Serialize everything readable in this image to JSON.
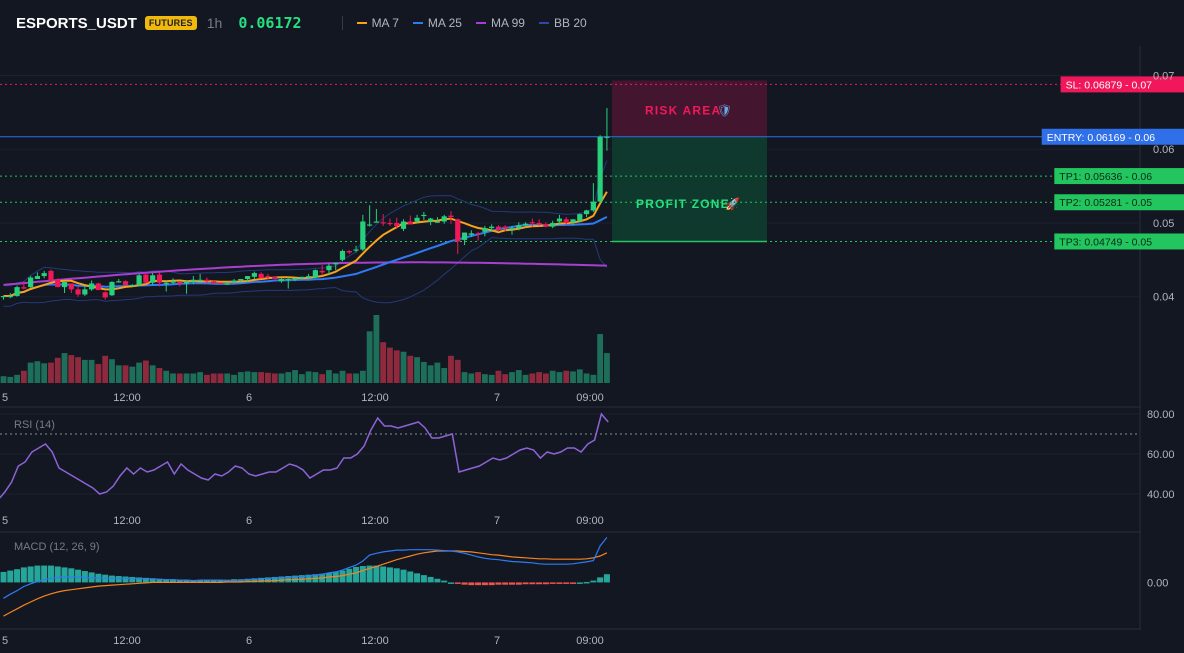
{
  "header": {
    "symbol": "ESPORTS_USDT",
    "badge": "FUTURES",
    "timeframe": "1h",
    "price": "0.06172"
  },
  "legend": [
    {
      "label": "MA 7",
      "color": "#f7a21b"
    },
    {
      "label": "MA 25",
      "color": "#2f7bf5"
    },
    {
      "label": "MA 99",
      "color": "#a93fd1"
    },
    {
      "label": "BB 20",
      "color": "#2b4aa0"
    }
  ],
  "levels": [
    {
      "label": "SL: 0.06879 - 0.07",
      "value": 0.06879,
      "kind": "sl",
      "color": "#f0185b"
    },
    {
      "label": "ENTRY: 0.06169 - 0.06",
      "value": 0.06169,
      "kind": "entry",
      "color": "#2f6fe8"
    },
    {
      "label": "TP1: 0.05636 - 0.06",
      "value": 0.05636,
      "kind": "tp",
      "color": "#22c55e"
    },
    {
      "label": "TP2: 0.05281 - 0.05",
      "value": 0.05281,
      "kind": "tp",
      "color": "#22c55e"
    },
    {
      "label": "TP3: 0.04749 - 0.05",
      "value": 0.04749,
      "kind": "tp",
      "color": "#22c55e"
    }
  ],
  "zones": {
    "risk_label": "RISK AREA",
    "profit_label": "PROFIT ZONE"
  },
  "colors": {
    "up": "#26d07c",
    "down": "#f0185b",
    "vol_up": "#1d6f5a",
    "vol_down": "#8f2a3e",
    "rsi": "#8e63d8",
    "macd": "#2f7bf5",
    "signal": "#f5841f",
    "hist_up": "#26a69a",
    "hist_down": "#ef5350"
  },
  "chart_data": [
    {
      "type": "candlestick",
      "title": "ESPORTS_USDT",
      "x_ticks": [
        "5",
        "12:00",
        "6",
        "12:00",
        "7",
        "09:00"
      ],
      "y_ticks": [
        "0.07",
        "0.06",
        "0.05",
        "0.04"
      ],
      "ylim": [
        0.0283,
        0.0702
      ],
      "candles": [
        [
          0.04,
          0.04,
          0.0396,
          0.0401
        ],
        [
          0.04,
          0.0405,
          0.0398,
          0.0401
        ],
        [
          0.0401,
          0.0415,
          0.04,
          0.0413
        ],
        [
          0.0413,
          0.0421,
          0.041,
          0.0411
        ],
        [
          0.0413,
          0.0428,
          0.0412,
          0.0426
        ],
        [
          0.0424,
          0.0433,
          0.0425,
          0.0428
        ],
        [
          0.0428,
          0.0435,
          0.0425,
          0.0432
        ],
        [
          0.0435,
          0.0437,
          0.042,
          0.0422
        ],
        [
          0.0423,
          0.0425,
          0.0413,
          0.0413
        ],
        [
          0.0413,
          0.042,
          0.0405,
          0.042
        ],
        [
          0.0418,
          0.0418,
          0.0405,
          0.041
        ],
        [
          0.041,
          0.0414,
          0.04,
          0.0403
        ],
        [
          0.0403,
          0.0415,
          0.0401,
          0.041
        ],
        [
          0.041,
          0.0422,
          0.0408,
          0.0418
        ],
        [
          0.0418,
          0.0419,
          0.0409,
          0.0409
        ],
        [
          0.0406,
          0.0407,
          0.0396,
          0.0399
        ],
        [
          0.0402,
          0.0421,
          0.0401,
          0.042
        ],
        [
          0.0421,
          0.0424,
          0.0419,
          0.0421
        ],
        [
          0.0421,
          0.0422,
          0.0415,
          0.0416
        ],
        [
          0.0416,
          0.0417,
          0.0414,
          0.0416
        ],
        [
          0.0416,
          0.0431,
          0.0414,
          0.0429
        ],
        [
          0.043,
          0.0432,
          0.0418,
          0.0419
        ],
        [
          0.0419,
          0.0432,
          0.0416,
          0.0429
        ],
        [
          0.043,
          0.0433,
          0.0414,
          0.0419
        ],
        [
          0.0419,
          0.0421,
          0.0407,
          0.0419
        ],
        [
          0.0419,
          0.0425,
          0.0417,
          0.0421
        ],
        [
          0.042,
          0.0421,
          0.0414,
          0.0418
        ],
        [
          0.0418,
          0.0421,
          0.0404,
          0.0421
        ],
        [
          0.0421,
          0.0428,
          0.0417,
          0.0423
        ],
        [
          0.0423,
          0.0431,
          0.042,
          0.0423
        ],
        [
          0.0423,
          0.0426,
          0.0418,
          0.0421
        ],
        [
          0.0421,
          0.0422,
          0.0417,
          0.0418
        ],
        [
          0.0419,
          0.0419,
          0.0417,
          0.0418
        ],
        [
          0.0418,
          0.042,
          0.0416,
          0.0418
        ],
        [
          0.042,
          0.0424,
          0.0418,
          0.0422
        ],
        [
          0.0422,
          0.0424,
          0.042,
          0.0424
        ],
        [
          0.0424,
          0.0428,
          0.042,
          0.0428
        ],
        [
          0.0427,
          0.0434,
          0.0424,
          0.0432
        ],
        [
          0.0431,
          0.0433,
          0.0425,
          0.0425
        ],
        [
          0.0428,
          0.0431,
          0.0424,
          0.0427
        ],
        [
          0.0427,
          0.0427,
          0.0424,
          0.0424
        ],
        [
          0.0421,
          0.0426,
          0.0419,
          0.0424
        ],
        [
          0.0423,
          0.0427,
          0.0411,
          0.0424
        ],
        [
          0.0423,
          0.0426,
          0.0421,
          0.0425
        ],
        [
          0.0425,
          0.0427,
          0.0424,
          0.0427
        ],
        [
          0.0426,
          0.0431,
          0.0424,
          0.0428
        ],
        [
          0.0426,
          0.0437,
          0.0425,
          0.0436
        ],
        [
          0.0435,
          0.0443,
          0.0429,
          0.0433
        ],
        [
          0.0436,
          0.0445,
          0.043,
          0.0442
        ],
        [
          0.0444,
          0.0446,
          0.0436,
          0.0446
        ],
        [
          0.045,
          0.0464,
          0.0448,
          0.0462
        ],
        [
          0.0462,
          0.0463,
          0.0458,
          0.046
        ],
        [
          0.0463,
          0.0469,
          0.046,
          0.0464
        ],
        [
          0.0464,
          0.0511,
          0.0462,
          0.0502
        ],
        [
          0.0498,
          0.0524,
          0.0495,
          0.0498
        ],
        [
          0.0502,
          0.0519,
          0.0501,
          0.0502
        ],
        [
          0.0501,
          0.0512,
          0.0496,
          0.05
        ],
        [
          0.05,
          0.0506,
          0.0496,
          0.0499
        ],
        [
          0.05,
          0.0507,
          0.0492,
          0.0496
        ],
        [
          0.0492,
          0.0505,
          0.0489,
          0.0502
        ],
        [
          0.0502,
          0.051,
          0.0498,
          0.0498
        ],
        [
          0.0502,
          0.0511,
          0.05,
          0.0507
        ],
        [
          0.0511,
          0.0515,
          0.0504,
          0.0511
        ],
        [
          0.0502,
          0.0507,
          0.0497,
          0.0506
        ],
        [
          0.0502,
          0.0508,
          0.05,
          0.0502
        ],
        [
          0.0502,
          0.0511,
          0.0499,
          0.0509
        ],
        [
          0.051,
          0.0516,
          0.0499,
          0.0508
        ],
        [
          0.0505,
          0.0506,
          0.0458,
          0.0475
        ],
        [
          0.0477,
          0.0487,
          0.047,
          0.0487
        ],
        [
          0.0484,
          0.049,
          0.0481,
          0.0486
        ],
        [
          0.0486,
          0.0488,
          0.0476,
          0.0485
        ],
        [
          0.0488,
          0.0496,
          0.0482,
          0.0493
        ],
        [
          0.0493,
          0.0498,
          0.0488,
          0.0495
        ],
        [
          0.0495,
          0.0497,
          0.0488,
          0.0491
        ],
        [
          0.0495,
          0.0497,
          0.0489,
          0.0493
        ],
        [
          0.0493,
          0.0496,
          0.0484,
          0.0493
        ],
        [
          0.0493,
          0.0501,
          0.049,
          0.0497
        ],
        [
          0.0497,
          0.0501,
          0.0494,
          0.0499
        ],
        [
          0.0501,
          0.0506,
          0.0495,
          0.05
        ],
        [
          0.05,
          0.0505,
          0.0496,
          0.0498
        ],
        [
          0.0498,
          0.0501,
          0.0494,
          0.0495
        ],
        [
          0.0495,
          0.0503,
          0.0493,
          0.05
        ],
        [
          0.0502,
          0.0511,
          0.0497,
          0.0506
        ],
        [
          0.0505,
          0.0508,
          0.0497,
          0.05
        ],
        [
          0.0501,
          0.0505,
          0.0497,
          0.0505
        ],
        [
          0.0503,
          0.0513,
          0.0501,
          0.0512
        ],
        [
          0.0512,
          0.0518,
          0.0508,
          0.0517
        ],
        [
          0.0517,
          0.0554,
          0.0515,
          0.0529
        ],
        [
          0.0529,
          0.0619,
          0.0527,
          0.0617
        ],
        [
          0.0616,
          0.0656,
          0.0598,
          0.0617
        ]
      ],
      "volume_scale_max": 100,
      "volumes": [
        10,
        9,
        12,
        18,
        30,
        32,
        29,
        30,
        37,
        44,
        41,
        38,
        34,
        34,
        28,
        40,
        35,
        26,
        26,
        24,
        30,
        33,
        26,
        22,
        18,
        14,
        14,
        14,
        14,
        16,
        12,
        14,
        14,
        14,
        12,
        16,
        17,
        16,
        16,
        15,
        14,
        14,
        16,
        19,
        13,
        17,
        16,
        13,
        19,
        14,
        18,
        14,
        14,
        18,
        76,
        100,
        60,
        52,
        48,
        46,
        40,
        38,
        31,
        26,
        30,
        22,
        40,
        34,
        16,
        14,
        16,
        13,
        12,
        18,
        13,
        16,
        19,
        12,
        14,
        16,
        14,
        18,
        16,
        18,
        17,
        20,
        14,
        12,
        72,
        44
      ]
    },
    {
      "type": "line",
      "title": "RSI (14)",
      "y_ticks": [
        "80.00",
        "60.00",
        "40.00"
      ],
      "ylim": [
        35,
        83
      ],
      "overbought": 70,
      "values": [
        37,
        41,
        46,
        54,
        56,
        61,
        63,
        65,
        61,
        53,
        51,
        49,
        47,
        45,
        43,
        40,
        41,
        44,
        49,
        53,
        50,
        53,
        51,
        52,
        54,
        56,
        50,
        55,
        52,
        50,
        48,
        47,
        50,
        49,
        51,
        54,
        53,
        50,
        49,
        50,
        51,
        51,
        53,
        55,
        54,
        52,
        48,
        50,
        52,
        52,
        53,
        58,
        58,
        60,
        64,
        72,
        78,
        74,
        74,
        73,
        74,
        75,
        76,
        73,
        68,
        68,
        69,
        70,
        51,
        52,
        53,
        54,
        56,
        58,
        57,
        58,
        60,
        62,
        63,
        62,
        58,
        61,
        60,
        61,
        63,
        63,
        61,
        65,
        67,
        80,
        76
      ]
    },
    {
      "type": "line",
      "title": "MACD (12, 26, 9)",
      "y_ticks": [
        "0.00"
      ],
      "ylim": [
        -0.00098,
        0.00113
      ],
      "series": [
        {
          "name": "MACD",
          "values": [
            -0.00035,
            -0.00026,
            -0.00018,
            -9e-05,
            -3e-05,
            2e-05,
            6e-05,
            9e-05,
            0.00011,
            0.00012,
            0.00012,
            0.00012,
            0.00011,
            0.0001,
            0.0001,
            9e-05,
            9e-05,
            9e-05,
            9e-05,
            8e-05,
            9e-05,
            8e-05,
            8e-05,
            7e-05,
            6e-05,
            6e-05,
            5e-05,
            5e-05,
            4e-05,
            5e-05,
            5e-05,
            5e-05,
            5e-05,
            4e-05,
            4e-05,
            5e-05,
            6e-05,
            7e-05,
            8e-05,
            9e-05,
            0.0001,
            0.0001,
            0.00011,
            0.00012,
            0.00013,
            0.00014,
            0.00016,
            0.00018,
            0.00021,
            0.00023,
            0.00027,
            0.00033,
            0.00038,
            0.00047,
            0.0006,
            0.00064,
            0.00067,
            0.00069,
            0.00071,
            0.00071,
            0.00072,
            0.00072,
            0.00072,
            0.00072,
            0.00071,
            0.0007,
            0.00069,
            0.00067,
            0.00064,
            0.0006,
            0.00056,
            0.00053,
            0.00051,
            0.0005,
            0.00048,
            0.00046,
            0.00045,
            0.00044,
            0.00043,
            0.00041,
            0.0004,
            0.0004,
            0.0004,
            0.0004,
            0.00041,
            0.00043,
            0.00045,
            0.00048,
            0.0008,
            0.00099
          ]
        },
        {
          "name": "Signal",
          "values": [
            -0.00074,
            -0.00066,
            -0.00058,
            -0.0005,
            -0.00043,
            -0.00036,
            -0.0003,
            -0.00025,
            -0.00021,
            -0.00018,
            -0.00016,
            -0.00014,
            -0.00012,
            -0.0001,
            -8e-05,
            -7e-05,
            -6e-05,
            -5e-05,
            -4e-05,
            -3e-05,
            -2e-05,
            -1e-05,
            0.0,
            0.0,
            0.0,
            0.0,
            0.0,
            0.0,
            0.0,
            0.0,
            0.0,
            0.0,
            0.0,
            1e-05,
            1e-05,
            1e-05,
            2e-05,
            2e-05,
            3e-05,
            3e-05,
            4e-05,
            5e-05,
            6e-05,
            6e-05,
            7e-05,
            8e-05,
            9e-05,
            0.0001,
            0.00012,
            0.00013,
            0.00015,
            0.00018,
            0.00021,
            0.00026,
            0.00031,
            0.00035,
            0.0004,
            0.00045,
            0.0005,
            0.00054,
            0.00058,
            0.00062,
            0.00065,
            0.00067,
            0.00069,
            0.00069,
            0.00069,
            0.00069,
            0.00068,
            0.00067,
            0.00065,
            0.00063,
            0.00061,
            0.0006,
            0.00058,
            0.00056,
            0.00055,
            0.00054,
            0.00053,
            0.00052,
            0.00052,
            0.00051,
            0.00051,
            0.00051,
            0.00051,
            0.00051,
            0.00052,
            0.00054,
            0.00058,
            0.00065
          ]
        }
      ],
      "histogram": [
        0.00023,
        0.00026,
        0.00029,
        0.00033,
        0.00035,
        0.00037,
        0.00037,
        0.00037,
        0.00035,
        0.00033,
        0.00031,
        0.00028,
        0.00025,
        0.00022,
        0.00019,
        0.00017,
        0.00015,
        0.00014,
        0.00013,
        0.00012,
        0.00011,
        0.0001,
        9e-05,
        8e-05,
        7e-05,
        7e-05,
        6e-05,
        6e-05,
        5e-05,
        5e-05,
        6e-05,
        6e-05,
        6e-05,
        6e-05,
        7e-05,
        7e-05,
        8e-05,
        9e-05,
        0.0001,
        0.00011,
        0.00012,
        0.00013,
        0.00014,
        0.00015,
        0.00016,
        0.00017,
        0.00018,
        0.00019,
        0.00021,
        0.00023,
        0.00026,
        0.0003,
        0.00034,
        0.00036,
        0.00037,
        0.00037,
        0.00035,
        0.00033,
        0.00031,
        0.00028,
        0.00024,
        0.0002,
        0.00016,
        0.00012,
        8e-05,
        4e-05,
        0.0,
        -3e-05,
        -5e-05,
        -6e-05,
        -6e-05,
        -6e-05,
        -6e-05,
        -5e-05,
        -5e-05,
        -5e-05,
        -5e-05,
        -4e-05,
        -4e-05,
        -4e-05,
        -4e-05,
        -3e-05,
        -3e-05,
        -2e-05,
        -1e-05,
        0.0,
        1e-05,
        4e-05,
        0.00011,
        0.00018
      ]
    }
  ]
}
